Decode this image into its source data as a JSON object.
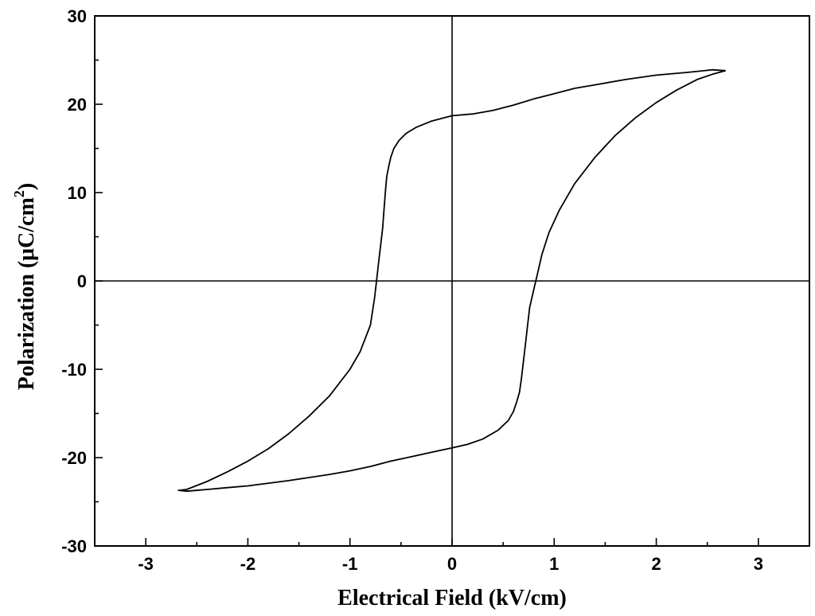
{
  "chart_data": {
    "type": "line",
    "title": "",
    "xlabel": "Electrical Field (kV/cm)",
    "ylabel_main": "Polarization (μC/cm",
    "ylabel_sup": "2",
    "ylabel_close": ")",
    "xlim": [
      -3.5,
      3.5
    ],
    "ylim": [
      -30,
      30
    ],
    "xticks": [
      -3,
      -2,
      -1,
      0,
      1,
      2,
      3
    ],
    "yticks": [
      -30,
      -20,
      -10,
      0,
      10,
      20,
      30
    ],
    "grid": false,
    "zero_lines": true,
    "series": [
      {
        "color": "#000000",
        "x": [
          2.68,
          2.55,
          2.3,
          2.0,
          1.7,
          1.4,
          1.2,
          1.0,
          0.8,
          0.6,
          0.4,
          0.2,
          0.0,
          -0.2,
          -0.35,
          -0.45,
          -0.52,
          -0.57,
          -0.6,
          -0.62,
          -0.64,
          -0.65,
          -0.66,
          -0.67,
          -0.68,
          -0.7,
          -0.72,
          -0.74,
          -0.76,
          -0.8,
          -0.9,
          -1.0,
          -1.2,
          -1.4,
          -1.6,
          -1.8,
          -2.0,
          -2.2,
          -2.4,
          -2.6,
          -2.68,
          -2.6,
          -2.4,
          -2.2,
          -2.0,
          -1.6,
          -1.2,
          -1.0,
          -0.8,
          -0.6,
          -0.4,
          -0.2,
          0.0,
          0.15,
          0.3,
          0.45,
          0.55,
          0.6,
          0.63,
          0.66,
          0.68,
          0.7,
          0.72,
          0.74,
          0.76,
          0.8,
          0.84,
          0.88,
          0.95,
          1.05,
          1.2,
          1.4,
          1.6,
          1.8,
          2.0,
          2.2,
          2.4,
          2.55,
          2.68
        ],
        "y": [
          23.8,
          23.9,
          23.6,
          23.3,
          22.8,
          22.2,
          21.8,
          21.2,
          20.6,
          19.9,
          19.3,
          18.9,
          18.7,
          18.1,
          17.4,
          16.7,
          15.9,
          15.0,
          14.0,
          13.0,
          11.8,
          10.5,
          9.0,
          7.5,
          6.0,
          4.0,
          2.0,
          0.0,
          -2.0,
          -5.0,
          -8.0,
          -10.0,
          -13.0,
          -15.3,
          -17.3,
          -19.0,
          -20.4,
          -21.6,
          -22.7,
          -23.6,
          -23.7,
          -23.8,
          -23.6,
          -23.4,
          -23.2,
          -22.6,
          -21.9,
          -21.5,
          -21.0,
          -20.4,
          -19.9,
          -19.4,
          -18.9,
          -18.5,
          -17.9,
          -16.9,
          -15.8,
          -14.8,
          -13.8,
          -12.6,
          -11.0,
          -9.0,
          -7.0,
          -5.0,
          -3.0,
          -1.0,
          1.0,
          3.0,
          5.5,
          8.0,
          11.0,
          14.0,
          16.5,
          18.5,
          20.2,
          21.6,
          22.8,
          23.4,
          23.8
        ]
      }
    ]
  }
}
